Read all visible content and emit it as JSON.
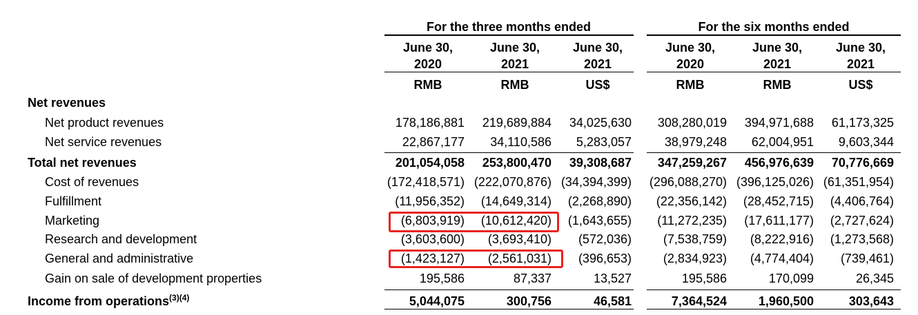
{
  "headers": {
    "group_three": "For the three months ended",
    "group_six": "For the six months ended",
    "cols": [
      {
        "line1": "June 30,",
        "line2": "2020",
        "currency": "RMB"
      },
      {
        "line1": "June 30,",
        "line2": "2021",
        "currency": "RMB"
      },
      {
        "line1": "June 30,",
        "line2": "2021",
        "currency": "US$"
      },
      {
        "line1": "June 30,",
        "line2": "2020",
        "currency": "RMB"
      },
      {
        "line1": "June 30,",
        "line2": "2021",
        "currency": "RMB"
      },
      {
        "line1": "June 30,",
        "line2": "2021",
        "currency": "US$"
      }
    ]
  },
  "rows": [
    {
      "label": "Net revenues",
      "values": [
        "",
        "",
        "",
        "",
        "",
        ""
      ]
    },
    {
      "label": "Net product revenues",
      "values": [
        "178,186,881",
        "219,689,884",
        "34,025,630",
        "308,280,019",
        "394,971,688",
        "61,173,325"
      ]
    },
    {
      "label": "Net service revenues",
      "values": [
        "22,867,177",
        "34,110,586",
        "5,283,057",
        "38,979,248",
        "62,004,951",
        "9,603,344"
      ]
    },
    {
      "label": "Total net revenues",
      "values": [
        "201,054,058",
        "253,800,470",
        "39,308,687",
        "347,259,267",
        "456,976,639",
        "70,776,669"
      ]
    },
    {
      "label": "Cost of revenues",
      "values": [
        "(172,418,571)",
        "(222,070,876)",
        "(34,394,399)",
        "(296,088,270)",
        "(396,125,026)",
        "(61,351,954)"
      ]
    },
    {
      "label": "Fulfillment",
      "values": [
        "(11,956,352)",
        "(14,649,314)",
        "(2,268,890)",
        "(22,356,142)",
        "(28,452,715)",
        "(4,406,764)"
      ]
    },
    {
      "label": "Marketing",
      "values": [
        "(6,803,919)",
        "(10,612,420)",
        "(1,643,655)",
        "(11,272,235)",
        "(17,611,177)",
        "(2,727,624)"
      ]
    },
    {
      "label": "Research and development",
      "values": [
        "(3,603,600)",
        "(3,693,410)",
        "(572,036)",
        "(7,538,759)",
        "(8,222,916)",
        "(1,273,568)"
      ]
    },
    {
      "label": "General and administrative",
      "values": [
        "(1,423,127)",
        "(2,561,031)",
        "(396,653)",
        "(2,834,923)",
        "(4,774,404)",
        "(739,461)"
      ]
    },
    {
      "label": "Gain on sale of development properties",
      "values": [
        "195,586",
        "87,337",
        "13,527",
        "195,586",
        "170,099",
        "26,345"
      ]
    },
    {
      "label": "Income from operations",
      "sup": "(3)(4)",
      "values": [
        "5,044,075",
        "300,756",
        "46,581",
        "7,364,524",
        "1,960,500",
        "303,643"
      ]
    }
  ]
}
